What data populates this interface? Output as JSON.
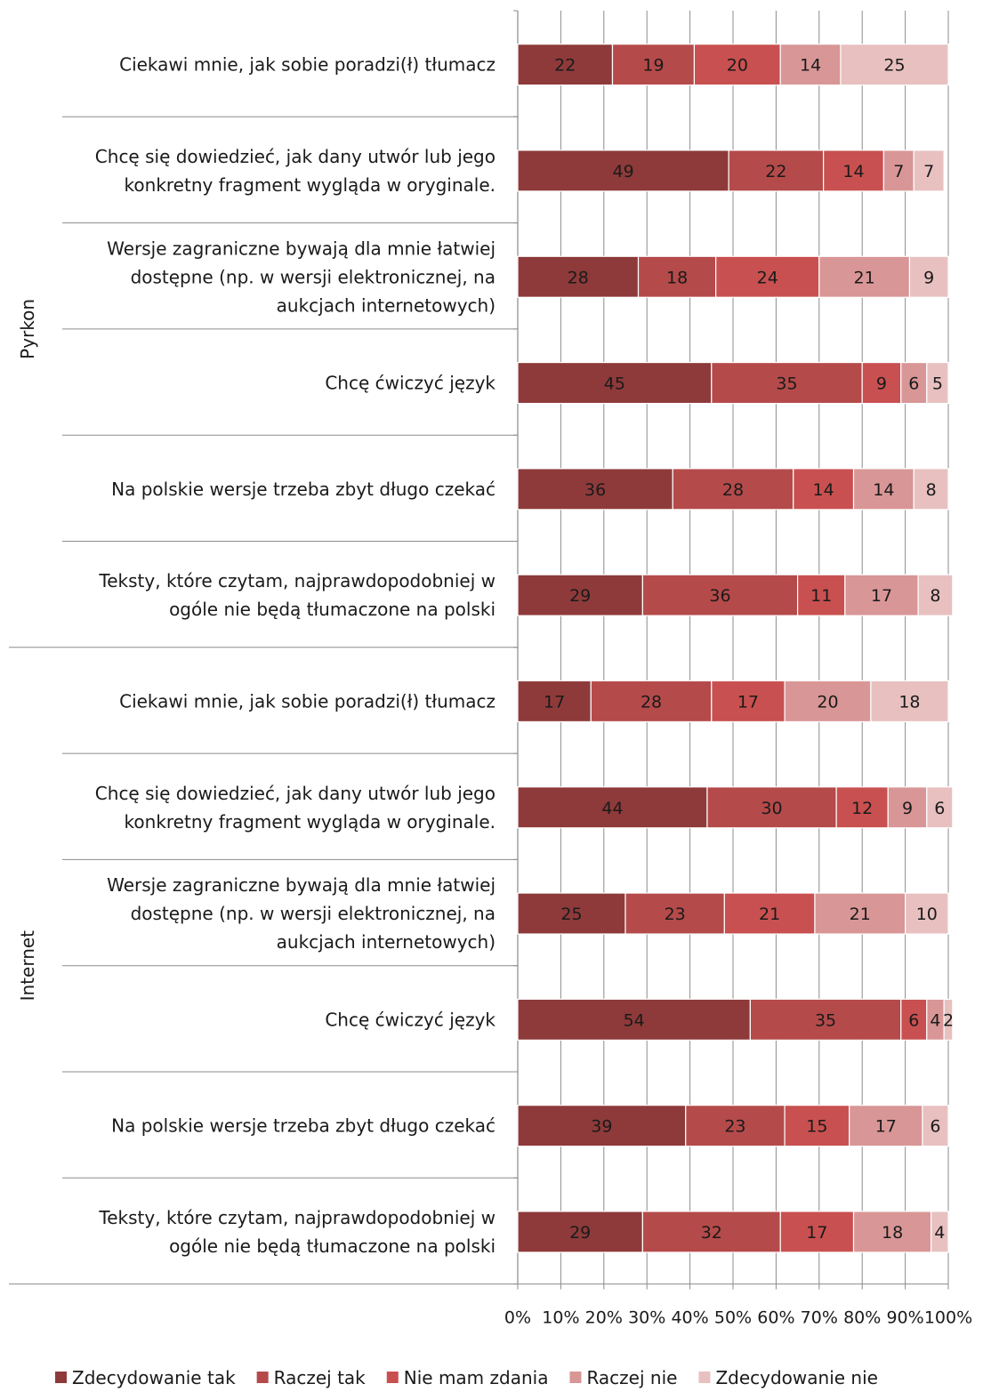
{
  "chart_data": {
    "type": "bar",
    "orientation": "horizontal",
    "stacked": "percent",
    "groups": [
      "Pyrkon",
      "Internet"
    ],
    "categories": [
      {
        "group": "Pyrkon",
        "label": "Ciekawi mnie, jak sobie poradzi(ł) tłumacz"
      },
      {
        "group": "Pyrkon",
        "label": "Chcę się dowiedzieć, jak dany utwór lub jego konkretny fragment wygląda w oryginale."
      },
      {
        "group": "Pyrkon",
        "label": "Wersje zagraniczne bywają dla mnie łatwiej dostępne (np. w wersji elektronicznej, na aukcjach internetowych)"
      },
      {
        "group": "Pyrkon",
        "label": "Chcę ćwiczyć język"
      },
      {
        "group": "Pyrkon",
        "label": "Na polskie wersje trzeba zbyt długo czekać"
      },
      {
        "group": "Pyrkon",
        "label": "Teksty, które czytam, najprawdopodobniej w ogóle nie będą tłumaczone na polski"
      },
      {
        "group": "Internet",
        "label": "Ciekawi mnie, jak sobie poradzi(ł) tłumacz"
      },
      {
        "group": "Internet",
        "label": "Chcę się dowiedzieć, jak dany utwór lub jego konkretny fragment wygląda w oryginale."
      },
      {
        "group": "Internet",
        "label": "Wersje zagraniczne bywają dla mnie łatwiej dostępne (np. w wersji elektronicznej, na aukcjach internetowych)"
      },
      {
        "group": "Internet",
        "label": "Chcę ćwiczyć język"
      },
      {
        "group": "Internet",
        "label": "Na polskie wersje trzeba zbyt długo czekać"
      },
      {
        "group": "Internet",
        "label": "Teksty, które czytam, najprawdopodobniej w ogóle nie będą tłumaczone na polski"
      }
    ],
    "series": [
      {
        "name": "Zdecydowanie tak",
        "color": "#8e3a3a",
        "values": [
          22,
          49,
          28,
          45,
          36,
          29,
          17,
          44,
          25,
          54,
          39,
          29
        ]
      },
      {
        "name": "Raczej tak",
        "color": "#b54a4a",
        "values": [
          19,
          22,
          18,
          35,
          28,
          36,
          28,
          30,
          23,
          35,
          23,
          32
        ]
      },
      {
        "name": "Nie  mam zdania",
        "color": "#c95050",
        "values": [
          20,
          14,
          24,
          9,
          14,
          11,
          17,
          12,
          21,
          6,
          15,
          17
        ]
      },
      {
        "name": "Raczej nie",
        "color": "#d99696",
        "values": [
          14,
          7,
          21,
          6,
          14,
          17,
          20,
          9,
          21,
          4,
          17,
          18
        ]
      },
      {
        "name": "Zdecydowanie nie",
        "color": "#e8c0c0",
        "values": [
          25,
          7,
          9,
          5,
          8,
          8,
          18,
          6,
          10,
          2,
          6,
          4
        ]
      }
    ],
    "x_ticks": [
      "0%",
      "10%",
      "20%",
      "30%",
      "40%",
      "50%",
      "60%",
      "70%",
      "80%",
      "90%",
      "100%"
    ],
    "xlim": [
      0,
      100
    ],
    "grid": true,
    "legend_position": "bottom"
  }
}
